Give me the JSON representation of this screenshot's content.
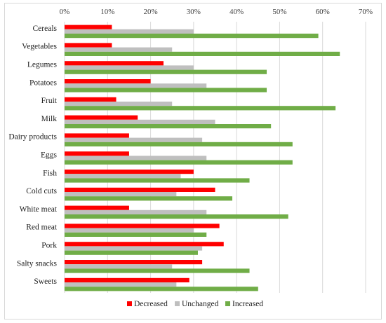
{
  "chart_data": {
    "type": "bar",
    "orientation": "horizontal",
    "categories": [
      "Cereals",
      "Vegetables",
      "Legumes",
      "Potatoes",
      "Fruit",
      "Milk",
      "Dairy products",
      "Eggs",
      "Fish",
      "Cold cuts",
      "White meat",
      "Red meat",
      "Pork",
      "Salty snacks",
      "Sweets"
    ],
    "series": [
      {
        "name": "Decreased",
        "color": "#ff0000",
        "values": [
          11,
          11,
          23,
          20,
          12,
          17,
          15,
          15,
          30,
          35,
          15,
          36,
          37,
          32,
          29
        ]
      },
      {
        "name": "Unchanged",
        "color": "#bfbfbf",
        "values": [
          30,
          25,
          30,
          33,
          25,
          35,
          32,
          33,
          27,
          26,
          33,
          30,
          32,
          25,
          26
        ]
      },
      {
        "name": "Increased",
        "color": "#70ad47",
        "values": [
          59,
          64,
          47,
          47,
          63,
          48,
          53,
          53,
          43,
          39,
          52,
          33,
          31,
          43,
          45
        ]
      }
    ],
    "x_ticks": [
      "0%",
      "10%",
      "20%",
      "30%",
      "40%",
      "50%",
      "60%",
      "70%"
    ],
    "xlim": [
      0,
      70
    ],
    "axis_position": "top",
    "grid": true,
    "legend_position": "bottom"
  }
}
